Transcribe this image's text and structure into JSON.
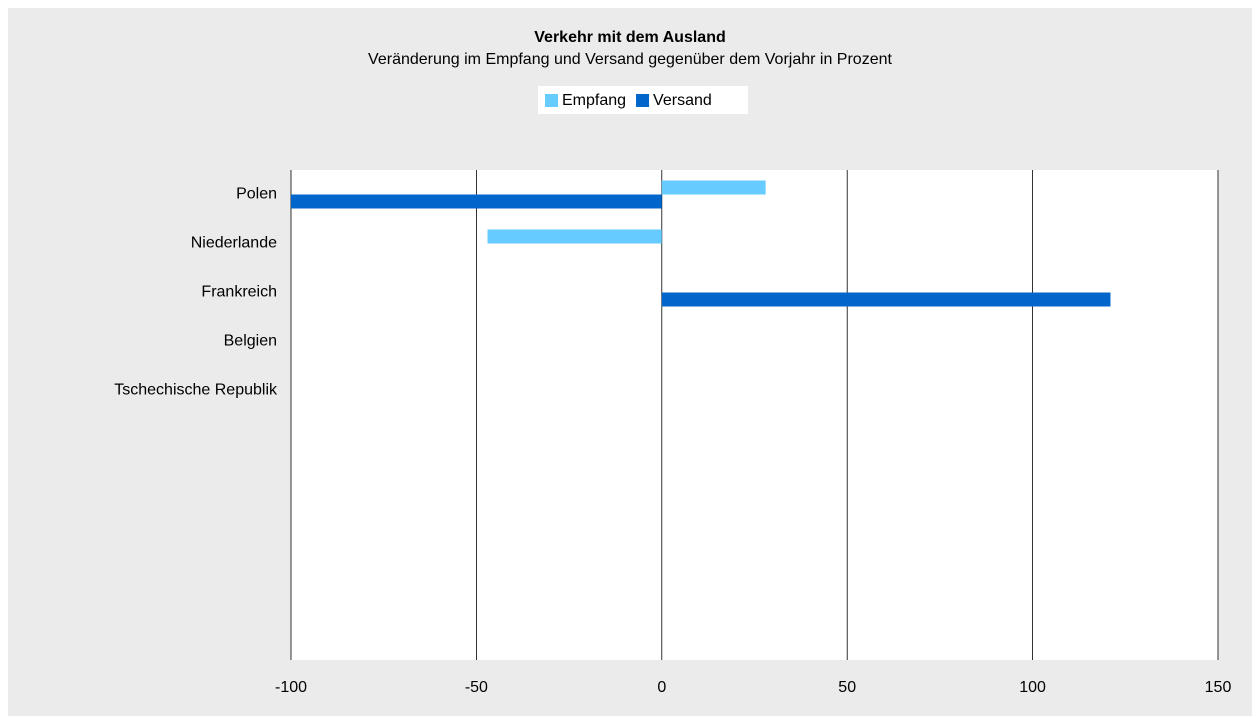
{
  "chart_data": {
    "type": "bar",
    "orientation": "horizontal",
    "title": "Verkehr mit dem Ausland",
    "subtitle": "Veränderung im Empfang und Versand gegenüber dem Vorjahr in Prozent",
    "categories": [
      "Polen",
      "Niederlande",
      "Frankreich",
      "Belgien",
      "Tschechische Republik",
      null,
      null,
      null,
      null,
      null
    ],
    "series": [
      {
        "name": "Empfang",
        "color": "#66ccff",
        "values": [
          28,
          -47,
          null,
          null,
          null,
          null,
          null,
          null,
          null,
          null
        ]
      },
      {
        "name": "Versand",
        "color": "#0066cc",
        "values": [
          -100,
          null,
          121,
          null,
          null,
          null,
          null,
          null,
          null,
          null
        ]
      }
    ],
    "xlim": [
      -100,
      150
    ],
    "xticks": [
      -100,
      -50,
      0,
      50,
      100,
      150
    ],
    "grid": true,
    "legend": "top"
  }
}
